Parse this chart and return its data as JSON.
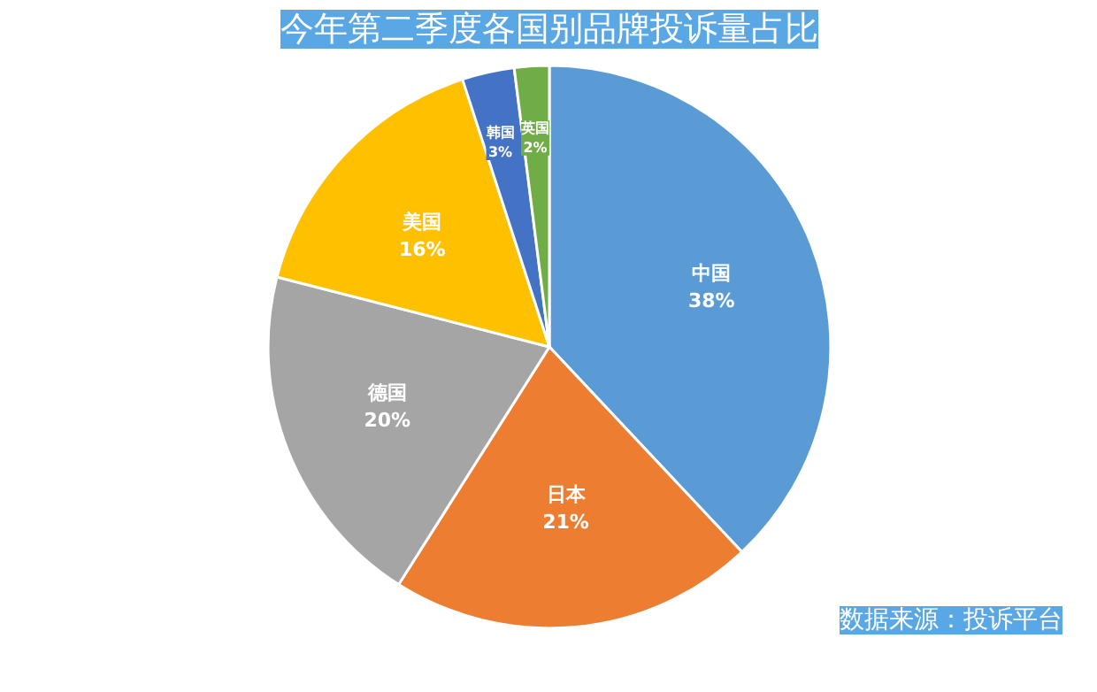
{
  "chart_data": {
    "type": "pie",
    "title": "今年第二季度各国别品牌投诉量占比",
    "categories": [
      "中国",
      "日本",
      "德国",
      "美国",
      "韩国",
      "英国"
    ],
    "values": [
      38,
      21,
      20,
      16,
      3,
      2
    ],
    "colors": [
      "#5b9bd5",
      "#ed7d31",
      "#a5a5a5",
      "#ffc000",
      "#4472c4",
      "#70ad47"
    ],
    "value_labels": [
      "38%",
      "21%",
      "20%",
      "16%",
      "3%",
      "2%"
    ],
    "annotations": [
      "数据来源：投诉平台"
    ]
  }
}
